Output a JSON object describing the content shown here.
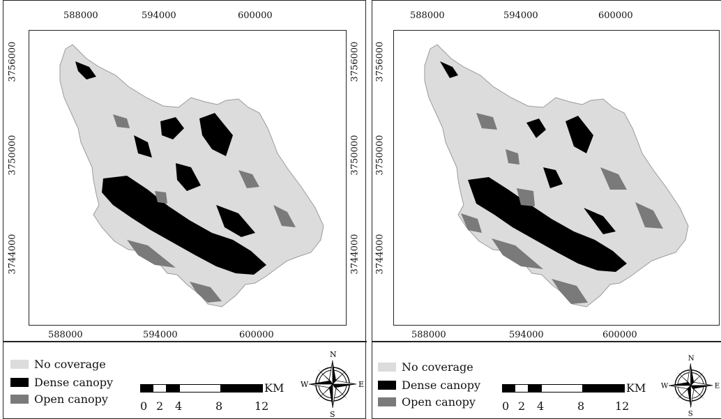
{
  "panels": [
    {
      "x_ticks": [
        "588000",
        "594000",
        "600000"
      ],
      "y_ticks": [
        "3756000",
        "3750000",
        "3744000"
      ],
      "legend": [
        {
          "label": "No coverage",
          "color": "#dcdcdc"
        },
        {
          "label": "Dense canopy",
          "color": "#000000"
        },
        {
          "label": "Open canopy",
          "color": "#7a7a7a"
        }
      ],
      "scale": {
        "numbers": [
          "0",
          "2",
          "4",
          "8",
          "12"
        ],
        "unit": "KM"
      },
      "compass": {
        "n": "N",
        "s": "S",
        "e": "E",
        "w": "W"
      }
    },
    {
      "x_ticks": [
        "588000",
        "594000",
        "600000"
      ],
      "y_ticks": [
        "3756000",
        "3750000",
        "3744000"
      ],
      "legend": [
        {
          "label": "No coverage",
          "color": "#dcdcdc"
        },
        {
          "label": "Dense canopy",
          "color": "#000000"
        },
        {
          "label": "Open canopy",
          "color": "#7a7a7a"
        }
      ],
      "scale": {
        "numbers": [
          "0",
          "2",
          "4",
          "8",
          "12"
        ],
        "unit": "KM"
      },
      "compass": {
        "n": "N",
        "s": "S",
        "e": "E",
        "w": "W"
      }
    }
  ],
  "colors": {
    "no_coverage": "#dcdcdc",
    "dense": "#000000",
    "open": "#7a7a7a"
  }
}
